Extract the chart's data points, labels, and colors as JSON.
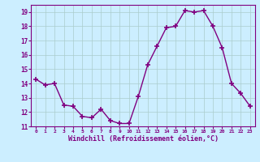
{
  "x": [
    0,
    1,
    2,
    3,
    4,
    5,
    6,
    7,
    8,
    9,
    10,
    11,
    12,
    13,
    14,
    15,
    16,
    17,
    18,
    19,
    20,
    21,
    22,
    23
  ],
  "y": [
    14.3,
    13.9,
    14.0,
    12.5,
    12.4,
    11.7,
    11.6,
    12.2,
    11.4,
    11.2,
    11.2,
    13.1,
    15.3,
    16.6,
    17.9,
    18.0,
    19.1,
    19.0,
    19.1,
    18.0,
    16.5,
    14.0,
    13.3,
    12.4
  ],
  "xlim": [
    -0.5,
    23.5
  ],
  "ylim": [
    11.0,
    19.5
  ],
  "yticks": [
    11,
    12,
    13,
    14,
    15,
    16,
    17,
    18,
    19
  ],
  "xticks": [
    0,
    1,
    2,
    3,
    4,
    5,
    6,
    7,
    8,
    9,
    10,
    11,
    12,
    13,
    14,
    15,
    16,
    17,
    18,
    19,
    20,
    21,
    22,
    23
  ],
  "xlabel": "Windchill (Refroidissement éolien,°C)",
  "line_color": "#800080",
  "marker_color": "#800080",
  "bg_color": "#cceeff",
  "grid_color": "#aacccc",
  "axis_label_color": "#800080",
  "tick_label_color": "#800080",
  "spine_color": "#800080"
}
